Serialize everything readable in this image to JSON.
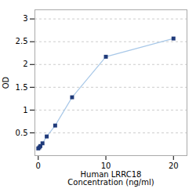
{
  "chart_data": {
    "type": "line",
    "xlabel": "Human LRRC18\nConcentration (ng/ml)",
    "ylabel": "OD",
    "x": [
      0,
      0.156,
      0.313,
      0.625,
      1.25,
      2.5,
      5,
      10,
      20
    ],
    "series": [
      {
        "type": "line",
        "color": "#a8c8e8",
        "values": [
          0.158,
          0.181,
          0.21,
          0.27,
          0.42,
          0.66,
          1.28,
          2.17,
          2.57
        ]
      },
      {
        "type": "scatter",
        "color": "#1f3a7a",
        "marker": "square",
        "values": [
          0.158,
          0.181,
          0.21,
          0.27,
          0.42,
          0.66,
          1.28,
          2.17,
          2.57
        ]
      }
    ],
    "xlim": [
      -0.5,
      22
    ],
    "ylim": [
      0,
      3.2
    ],
    "xticks": [
      0,
      10,
      20
    ],
    "yticks": [
      0.5,
      1,
      1.5,
      2,
      2.5,
      3
    ],
    "grid": true
  }
}
